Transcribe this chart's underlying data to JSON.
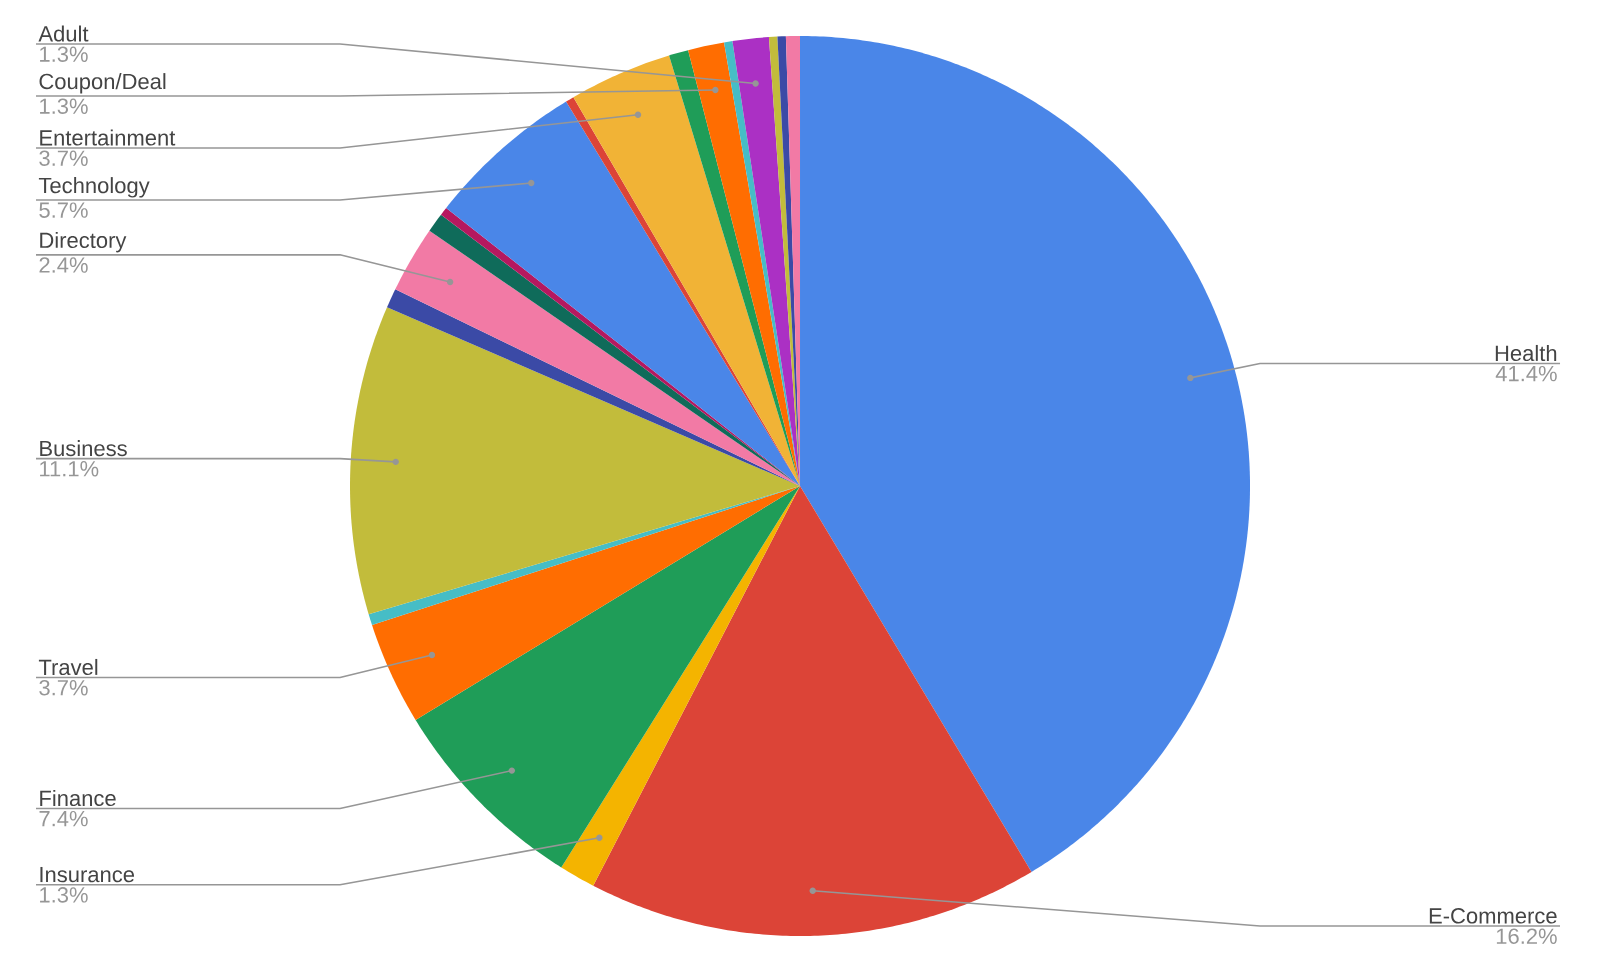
{
  "chart_data": {
    "type": "pie",
    "categories": [
      "Health",
      "E-Commerce",
      "Insurance",
      "Finance",
      "Travel",
      null,
      "Business",
      null,
      "Directory",
      null,
      null,
      "Technology",
      null,
      "Entertainment",
      null,
      "Coupon/Deal",
      null,
      "Adult",
      null,
      null,
      null
    ],
    "values": [
      41.4,
      16.2,
      1.3,
      7.4,
      3.7,
      0.4,
      11.1,
      0.7,
      2.4,
      0.7,
      0.3,
      5.7,
      0.3,
      3.7,
      0.7,
      1.3,
      0.3,
      1.3,
      0.3,
      0.3,
      0.5
    ],
    "value_labels": [
      "41.4%",
      "16.2%",
      "1.3%",
      "7.4%",
      "3.7%",
      null,
      "11.1%",
      null,
      "2.4%",
      null,
      null,
      "5.7%",
      null,
      "3.7%",
      null,
      "1.3%",
      null,
      "1.3%",
      null,
      null,
      null
    ],
    "colors": [
      "#4a86e8",
      "#dc4437",
      "#f4b400",
      "#1f9d58",
      "#ff6d01",
      "#46bdc6",
      "#c2bc3b",
      "#3b4aa6",
      "#f27aa5",
      "#0f6b5a",
      "#b5185f",
      "#4a86e8",
      "#dc4437",
      "#f1b336",
      "#1f9d58",
      "#ff6d01",
      "#46bdc6",
      "#ab30c4",
      "#c2bc3b",
      "#3b4aa6",
      "#f27aa5"
    ]
  }
}
